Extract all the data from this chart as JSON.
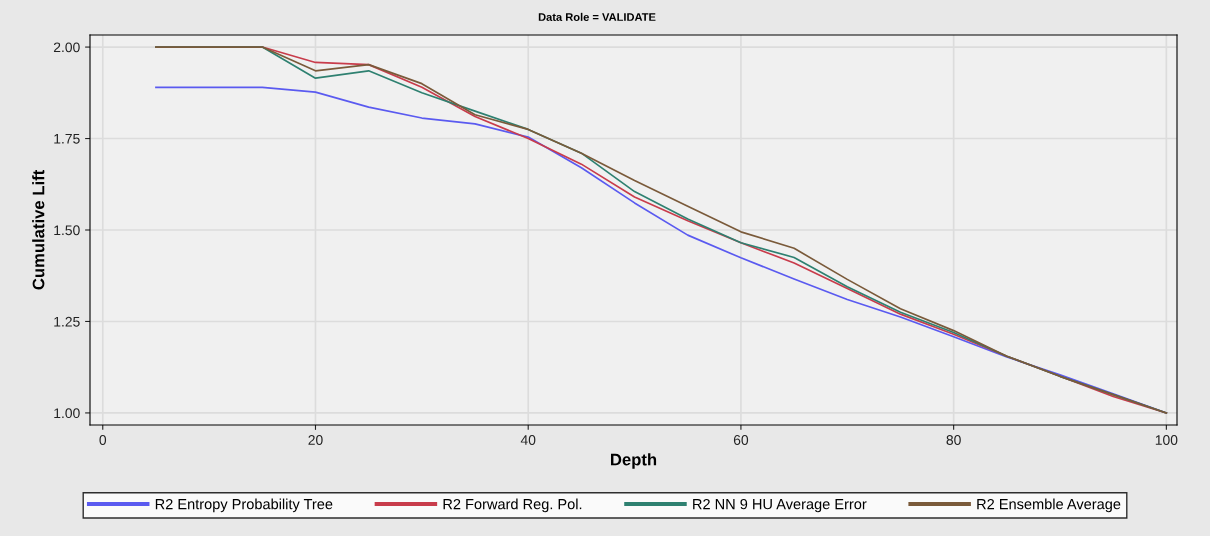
{
  "chart_data": {
    "type": "line",
    "title": "Data Role = VALIDATE",
    "xlabel": "Depth",
    "ylabel": "Cumulative Lift",
    "x": [
      5,
      10,
      15,
      20,
      25,
      30,
      35,
      40,
      45,
      50,
      55,
      60,
      65,
      70,
      75,
      80,
      85,
      90,
      95,
      100
    ],
    "series": [
      {
        "name": "R2 Entropy Probability Tree",
        "color": "#5a5af0",
        "values": [
          1.89,
          1.89,
          1.89,
          1.877,
          1.836,
          1.806,
          1.79,
          1.754,
          1.67,
          1.574,
          1.486,
          1.424,
          1.366,
          1.31,
          1.262,
          1.208,
          1.153,
          1.104,
          1.052,
          1.0
        ]
      },
      {
        "name": "R2 Forward Reg. Pol.",
        "color": "#c83c4b",
        "values": [
          2.0,
          2.0,
          2.0,
          1.958,
          1.952,
          1.89,
          1.81,
          1.75,
          1.68,
          1.59,
          1.525,
          1.465,
          1.41,
          1.34,
          1.27,
          1.215,
          1.155,
          1.1,
          1.045,
          1.0
        ]
      },
      {
        "name": "R2 NN 9 HU Average Error",
        "color": "#2e8070",
        "values": [
          2.0,
          2.0,
          2.0,
          1.915,
          1.935,
          1.875,
          1.825,
          1.775,
          1.71,
          1.605,
          1.53,
          1.465,
          1.425,
          1.345,
          1.275,
          1.22,
          1.155,
          1.1,
          1.05,
          1.0
        ]
      },
      {
        "name": "R2 Ensemble Average",
        "color": "#7a5a3a",
        "values": [
          2.0,
          2.0,
          2.0,
          1.935,
          1.952,
          1.9,
          1.815,
          1.775,
          1.71,
          1.635,
          1.565,
          1.495,
          1.45,
          1.365,
          1.285,
          1.225,
          1.155,
          1.1,
          1.05,
          1.0
        ]
      }
    ],
    "xlim": [
      -1.2,
      101
    ],
    "ylim": [
      0.967,
      2.033
    ],
    "xticks": [
      0,
      20,
      40,
      60,
      80,
      100
    ],
    "yticks": [
      {
        "value": 1.0,
        "label": "1.00"
      },
      {
        "value": 1.25,
        "label": "1.25"
      },
      {
        "value": 1.5,
        "label": "1.50"
      },
      {
        "value": 1.75,
        "label": "1.75"
      },
      {
        "value": 2.0,
        "label": "2.00"
      }
    ],
    "grid": true,
    "legend": "bottom",
    "marker": "none",
    "line_style": "solid"
  }
}
